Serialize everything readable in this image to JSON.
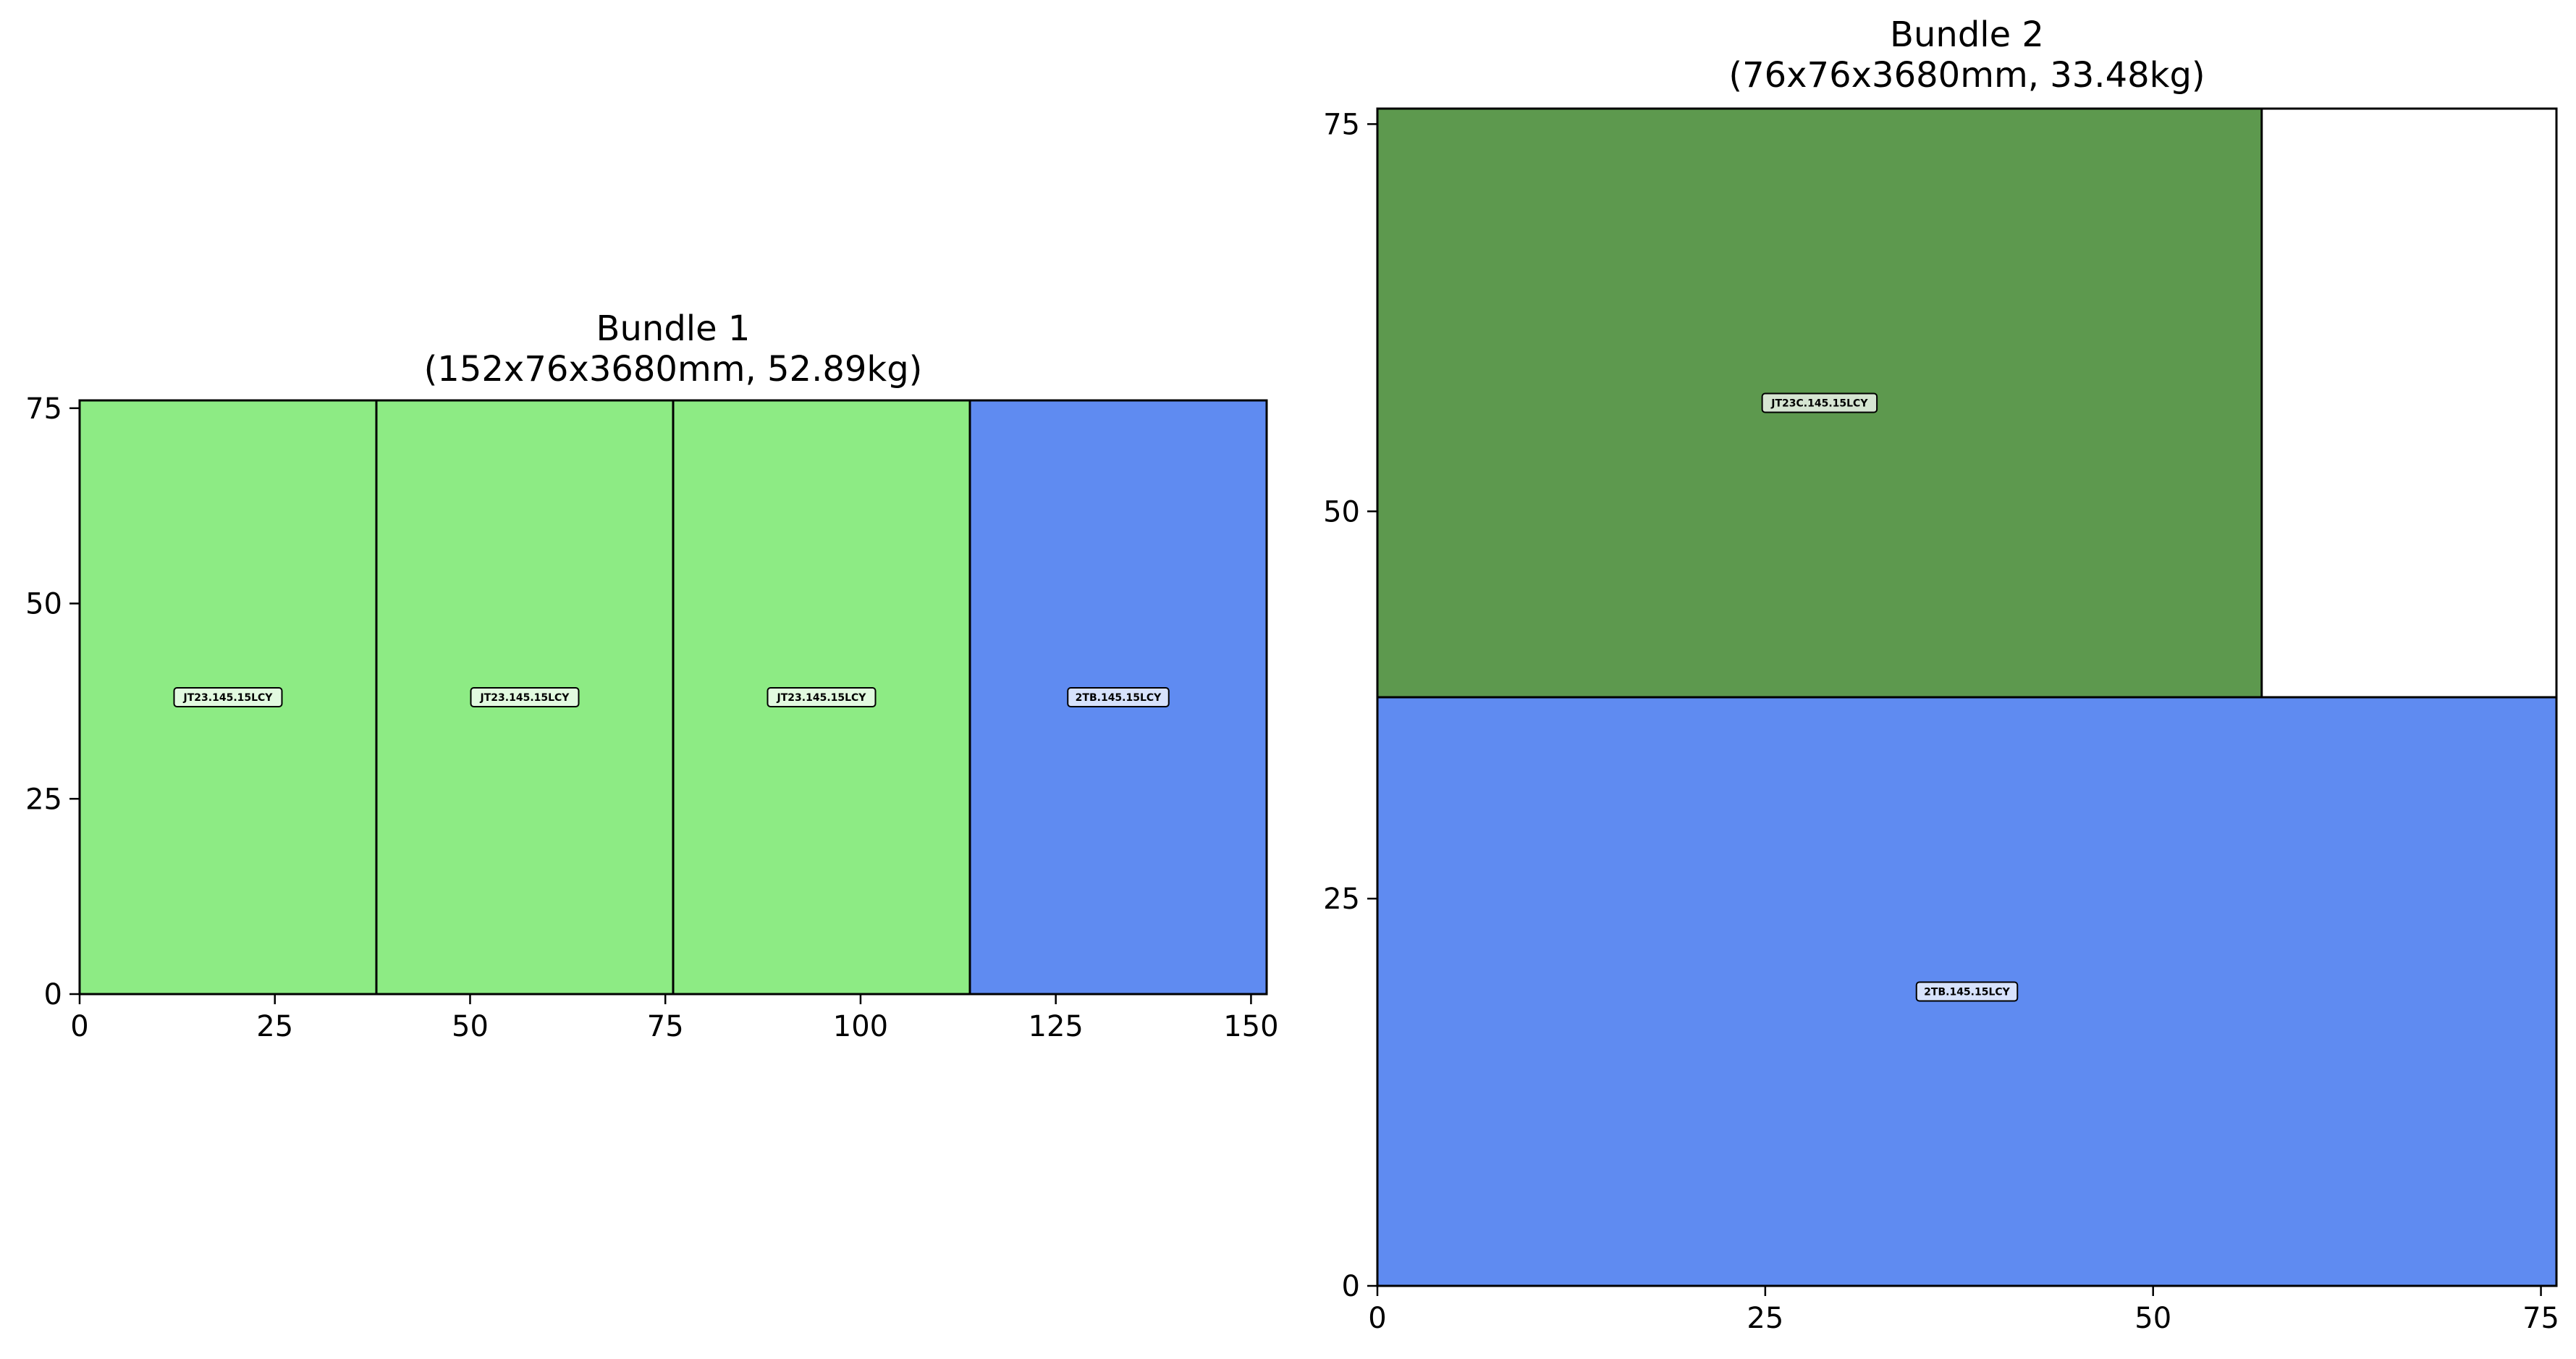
{
  "chart_data": [
    {
      "type": "bar",
      "title": "Bundle 1\n(152x76x3680mm, 52.89kg)",
      "xlim": [
        0,
        152
      ],
      "ylim": [
        0,
        76
      ],
      "xticks": [
        0,
        25,
        50,
        75,
        100,
        125,
        150
      ],
      "yticks": [
        0,
        25,
        50,
        75
      ],
      "grid": false,
      "items": [
        {
          "label": "JT23.145.15LCY",
          "x": 0,
          "y": 0,
          "w": 38,
          "h": 76,
          "color": "#8deb84"
        },
        {
          "label": "JT23.145.15LCY",
          "x": 38,
          "y": 0,
          "w": 38,
          "h": 76,
          "color": "#8deb84"
        },
        {
          "label": "JT23.145.15LCY",
          "x": 76,
          "y": 0,
          "w": 38,
          "h": 76,
          "color": "#8deb84"
        },
        {
          "label": "2TB.145.15LCY",
          "x": 114,
          "y": 0,
          "w": 38,
          "h": 76,
          "color": "#5f8bf1"
        }
      ]
    },
    {
      "type": "bar",
      "title": "Bundle 2\n(76x76x3680mm, 33.48kg)",
      "xlim": [
        0,
        76
      ],
      "ylim": [
        0,
        76
      ],
      "xticks": [
        0,
        25,
        50,
        75
      ],
      "yticks": [
        0,
        25,
        50,
        75
      ],
      "grid": false,
      "items": [
        {
          "label": "JT23C.145.15LCY",
          "x": 0,
          "y": 38,
          "w": 57,
          "h": 38,
          "color": "#5d994e"
        },
        {
          "label": "2TB.145.15LCY",
          "x": 0,
          "y": 0,
          "w": 76,
          "h": 38,
          "color": "#5f8bf1"
        }
      ]
    }
  ]
}
